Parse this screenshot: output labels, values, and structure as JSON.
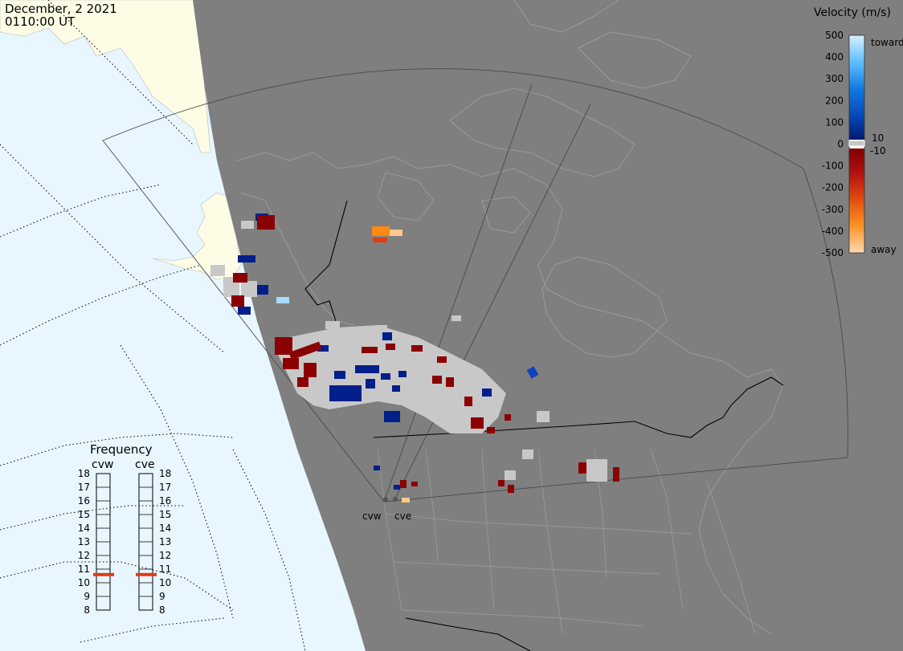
{
  "header": {
    "date": "December, 2 2021",
    "time": "0110:00 UT"
  },
  "colorbar": {
    "title": "Velocity (m/s)",
    "ticks": [
      "500",
      "400",
      "300",
      "200",
      "100",
      "0",
      "-100",
      "-200",
      "-300",
      "-400",
      "-500"
    ],
    "label_toward": "toward",
    "label_away": "away",
    "label_pos10": "10",
    "label_neg10": "-10"
  },
  "frequency": {
    "title": "Frequency",
    "radar_left": "cvw",
    "radar_right": "cve",
    "ticks": [
      "18",
      "17",
      "16",
      "15",
      "14",
      "13",
      "12",
      "11",
      "10",
      "9",
      "8"
    ],
    "cvw_mhz": 10.6,
    "cve_mhz": 10.6
  },
  "sites": {
    "cvw": "cvw",
    "cve": "cve"
  },
  "colors": {
    "night": "#7f7f7f",
    "day_ocean": "#e8f6ff",
    "day_land": "#fdfde6",
    "ground_scatter": "#c8c8c8",
    "freq_marker": "#e03a10"
  }
}
